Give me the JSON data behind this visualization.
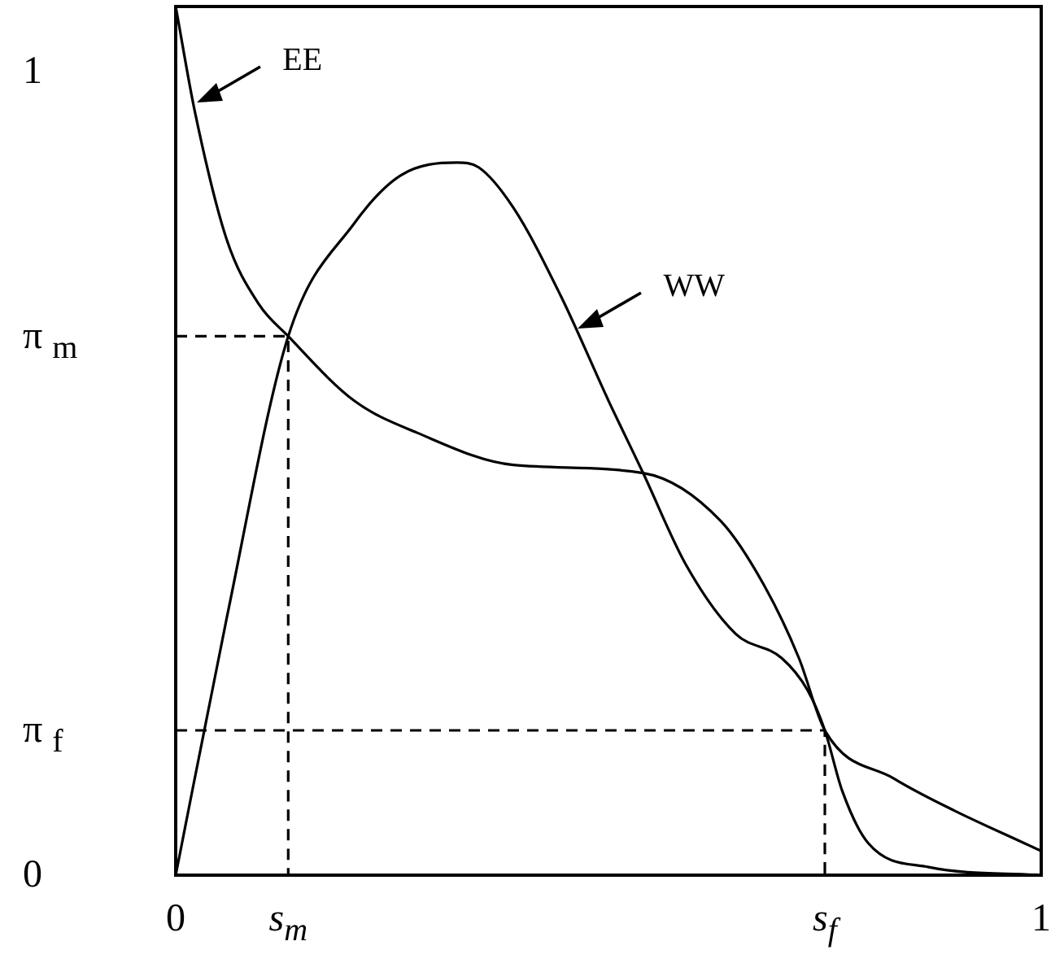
{
  "chart_data": {
    "type": "line",
    "xlim": [
      0,
      1
    ],
    "ylim": [
      0,
      1.08
    ],
    "xticks": [
      0,
      {
        "value": 0.13,
        "label": "s$_{m}$"
      },
      {
        "value": 0.75,
        "label": "s$_{f}$"
      },
      1
    ],
    "yticks": [
      0,
      {
        "value": 0.18,
        "label": "π $_{f}$"
      },
      {
        "value": 0.67,
        "label": "π $_{m}$"
      },
      1
    ],
    "grid": false,
    "legend": false,
    "marker": "none",
    "series": [
      {
        "color": "#000000",
        "x": [
          0,
          0.022,
          0.059,
          0.096,
          0.13,
          0.206,
          0.279,
          0.39,
          0.54,
          0.63,
          0.68,
          0.72,
          0.75,
          0.83,
          0.9,
          0.98,
          1
        ],
        "values": [
          1.08,
          0.95,
          0.79,
          0.71,
          0.67,
          0.59,
          0.55,
          0.51,
          0.5,
          0.44,
          0.36,
          0.27,
          0.18,
          0.12,
          0.08,
          0.04,
          0.03
        ]
      },
      {
        "color": "#000000",
        "x": [
          0,
          0.059,
          0.13,
          0.206,
          0.26,
          0.325,
          0.35,
          0.39,
          0.445,
          0.5,
          0.54,
          0.59,
          0.647,
          0.7,
          0.73,
          0.75,
          0.77,
          0.8,
          0.87,
          1
        ],
        "values": [
          0,
          0.32,
          0.67,
          0.81,
          0.87,
          0.886,
          0.88,
          0.83,
          0.72,
          0.59,
          0.5,
          0.385,
          0.3,
          0.27,
          0.23,
          0.18,
          0.105,
          0.04,
          0.01,
          0
        ]
      },
      {
        "color": "#000000",
        "line_style": "dashed",
        "x": [
          0,
          0.13,
          0.13
        ],
        "values": [
          0.67,
          0.67,
          0
        ]
      },
      {
        "color": "#000000",
        "line_style": "dashed",
        "x": [
          0,
          0.75,
          0.75
        ],
        "values": [
          0.18,
          0.18,
          0
        ]
      }
    ],
    "annotations": [
      {
        "text": "EE",
        "x": 0.02,
        "y": 0.96
      },
      {
        "text": "WW",
        "x": 0.46,
        "y": 0.68
      }
    ]
  }
}
